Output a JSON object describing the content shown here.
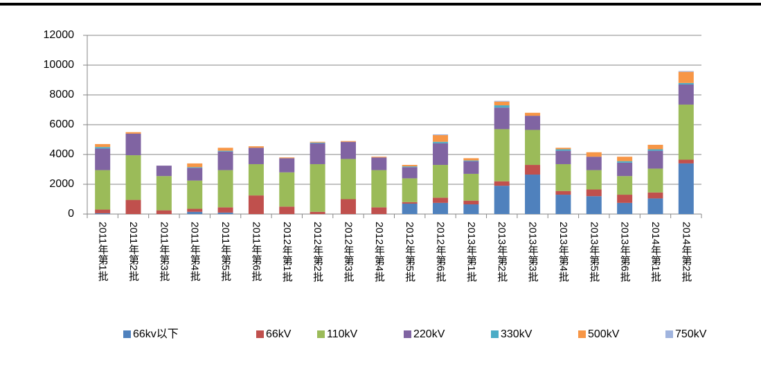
{
  "chart_data": {
    "type": "stacked_bar",
    "categories": [
      "2011年第1批",
      "2011年第2批",
      "2011年第3批",
      "2011年第4批",
      "2011年第5批",
      "2011年第6批",
      "2012年第1批",
      "2012年第2批",
      "2012年第3批",
      "2012年第4批",
      "2012年第5批",
      "2012年第6批",
      "2013年第1批",
      "2013年第2批",
      "2013年第3批",
      "2013年第4批",
      "2013年第5批",
      "2013年第6批",
      "2014年第1批",
      "2014年第2批"
    ],
    "series": [
      {
        "name": "66kv以下",
        "color": "#4f81bd",
        "values": [
          50,
          0,
          0,
          150,
          100,
          0,
          0,
          0,
          0,
          0,
          700,
          750,
          650,
          1900,
          2650,
          1300,
          1200,
          750,
          1050,
          3400
        ]
      },
      {
        "name": "66kV",
        "color": "#c0504d",
        "values": [
          250,
          950,
          250,
          200,
          350,
          1250,
          500,
          150,
          1000,
          450,
          100,
          350,
          250,
          300,
          650,
          250,
          450,
          550,
          400,
          250
        ]
      },
      {
        "name": "110kV",
        "color": "#9bbb59",
        "values": [
          2650,
          3000,
          2300,
          1900,
          2500,
          2100,
          2300,
          3200,
          2700,
          2500,
          1600,
          2200,
          1800,
          3500,
          2350,
          1800,
          1300,
          1250,
          1600,
          3700
        ]
      },
      {
        "name": "220kV",
        "color": "#8064a2",
        "values": [
          1450,
          1450,
          700,
          850,
          1250,
          1100,
          950,
          1400,
          1150,
          850,
          750,
          1450,
          850,
          1450,
          950,
          900,
          900,
          900,
          1200,
          1350
        ]
      },
      {
        "name": "330kV",
        "color": "#4bacc6",
        "values": [
          100,
          0,
          0,
          50,
          50,
          0,
          0,
          50,
          0,
          0,
          50,
          100,
          50,
          150,
          0,
          100,
          0,
          100,
          100,
          100
        ]
      },
      {
        "name": "500kV",
        "color": "#f79646",
        "values": [
          200,
          100,
          0,
          250,
          200,
          100,
          50,
          50,
          50,
          50,
          100,
          450,
          150,
          250,
          200,
          100,
          300,
          300,
          300,
          750
        ]
      },
      {
        "name": "750kV",
        "color": "#a0b4de",
        "values": [
          0,
          0,
          0,
          0,
          0,
          0,
          0,
          0,
          0,
          0,
          0,
          50,
          0,
          50,
          0,
          0,
          0,
          0,
          0,
          50
        ]
      }
    ],
    "ylim": [
      0,
      12000
    ],
    "yticks": [
      0,
      2000,
      4000,
      6000,
      8000,
      10000,
      12000
    ],
    "grid": true,
    "legend": "bottom"
  }
}
